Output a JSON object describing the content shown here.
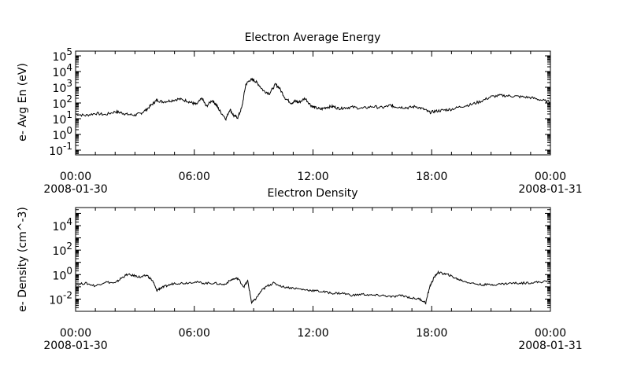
{
  "chart_data": [
    {
      "type": "line",
      "title": "Electron Average Energy",
      "ylabel": "e- Avg En (eV)",
      "yscale": "log",
      "ylim": [
        0.05,
        200000
      ],
      "xlim": [
        0,
        24
      ],
      "x_tick_labels": [
        {
          "x": 0,
          "label": "00:00",
          "date": "2008-01-30"
        },
        {
          "x": 6,
          "label": "06:00",
          "date": ""
        },
        {
          "x": 12,
          "label": "12:00",
          "date": ""
        },
        {
          "x": 18,
          "label": "18:00",
          "date": ""
        },
        {
          "x": 24,
          "label": "00:00",
          "date": "2008-01-31"
        }
      ],
      "y_ticks": [
        {
          "value": 100000,
          "base": "10",
          "exp": "5"
        },
        {
          "value": 10000,
          "base": "10",
          "exp": "4"
        },
        {
          "value": 1000,
          "base": "10",
          "exp": "3"
        },
        {
          "value": 100,
          "base": "10",
          "exp": "2"
        },
        {
          "value": 10,
          "base": "10",
          "exp": "1"
        },
        {
          "value": 1,
          "base": "10",
          "exp": "0"
        },
        {
          "value": 0.1,
          "base": "10",
          "exp": "-1"
        }
      ],
      "grid": false,
      "series": [
        {
          "color": "#000000",
          "x": [
            0,
            0.5,
            1,
            1.5,
            2,
            2.3,
            2.6,
            3,
            3.3,
            3.6,
            3.9,
            4.1,
            4.4,
            4.8,
            5.2,
            5.6,
            5.9,
            6.1,
            6.4,
            6.6,
            6.9,
            7.1,
            7.3,
            7.6,
            7.8,
            8.0,
            8.2,
            8.4,
            8.6,
            8.8,
            9.0,
            9.2,
            9.5,
            9.8,
            10.1,
            10.3,
            10.6,
            10.9,
            11.1,
            11.3,
            11.6,
            11.9,
            12.1,
            12.4,
            12.7,
            13.0,
            13.3,
            13.6,
            14.0,
            14.5,
            15.0,
            15.5,
            15.9,
            16.1,
            16.4,
            16.8,
            17.2,
            17.6,
            17.9,
            18.2,
            18.6,
            19.0,
            19.5,
            20.0,
            20.5,
            21.0,
            21.5,
            22.0,
            22.5,
            23.0,
            23.5,
            24.0
          ],
          "y": [
            20,
            16,
            22,
            18,
            28,
            24,
            19,
            17,
            22,
            40,
            90,
            150,
            120,
            140,
            180,
            140,
            100,
            80,
            200,
            60,
            150,
            80,
            30,
            10,
            40,
            15,
            12,
            50,
            1500,
            2800,
            3000,
            1800,
            600,
            400,
            1500,
            900,
            200,
            100,
            130,
            110,
            200,
            70,
            50,
            40,
            55,
            60,
            45,
            50,
            55,
            45,
            60,
            50,
            70,
            60,
            55,
            50,
            60,
            40,
            25,
            30,
            35,
            40,
            60,
            80,
            130,
            250,
            300,
            280,
            250,
            220,
            160,
            110
          ]
        }
      ]
    },
    {
      "type": "line",
      "title": "Electron Density",
      "ylabel": "e- Density (cm^-3)",
      "yscale": "log",
      "ylim": [
        0.001,
        300000
      ],
      "xlim": [
        0,
        24
      ],
      "x_tick_labels": [
        {
          "x": 0,
          "label": "00:00",
          "date": "2008-01-30"
        },
        {
          "x": 6,
          "label": "06:00",
          "date": ""
        },
        {
          "x": 12,
          "label": "12:00",
          "date": ""
        },
        {
          "x": 18,
          "label": "18:00",
          "date": ""
        },
        {
          "x": 24,
          "label": "00:00",
          "date": "2008-01-31"
        }
      ],
      "y_ticks": [
        {
          "value": 10000,
          "base": "10",
          "exp": "4"
        },
        {
          "value": 100,
          "base": "10",
          "exp": "2"
        },
        {
          "value": 1,
          "base": "10",
          "exp": "0"
        },
        {
          "value": 0.01,
          "base": "10",
          "exp": "-2"
        }
      ],
      "grid": false,
      "series": [
        {
          "color": "#000000",
          "x": [
            0,
            0.5,
            1,
            1.5,
            2,
            2.3,
            2.6,
            3,
            3.3,
            3.6,
            3.9,
            4.1,
            4.3,
            4.6,
            5.0,
            5.5,
            6.0,
            6.5,
            7.0,
            7.5,
            7.9,
            8.2,
            8.5,
            8.7,
            8.9,
            9.1,
            9.4,
            9.7,
            10.0,
            10.5,
            11.0,
            11.5,
            12.0,
            12.5,
            13.0,
            13.5,
            14.0,
            14.5,
            15.0,
            15.5,
            16.0,
            16.5,
            17.0,
            17.4,
            17.7,
            17.9,
            18.1,
            18.3,
            18.6,
            18.9,
            19.2,
            19.6,
            20.0,
            20.5,
            21.0,
            21.5,
            22.0,
            22.5,
            23.0,
            23.5,
            24.0
          ],
          "y": [
            0.15,
            0.2,
            0.12,
            0.25,
            0.2,
            0.5,
            1.0,
            0.8,
            0.6,
            0.9,
            0.3,
            0.05,
            0.08,
            0.12,
            0.2,
            0.2,
            0.25,
            0.2,
            0.2,
            0.15,
            0.4,
            0.5,
            0.1,
            0.3,
            0.005,
            0.01,
            0.05,
            0.12,
            0.2,
            0.1,
            0.08,
            0.06,
            0.05,
            0.04,
            0.03,
            0.03,
            0.02,
            0.025,
            0.02,
            0.02,
            0.015,
            0.02,
            0.012,
            0.01,
            0.005,
            0.1,
            0.5,
            1.5,
            1.2,
            0.9,
            0.5,
            0.3,
            0.2,
            0.15,
            0.15,
            0.17,
            0.2,
            0.2,
            0.22,
            0.25,
            0.3
          ]
        }
      ]
    }
  ]
}
